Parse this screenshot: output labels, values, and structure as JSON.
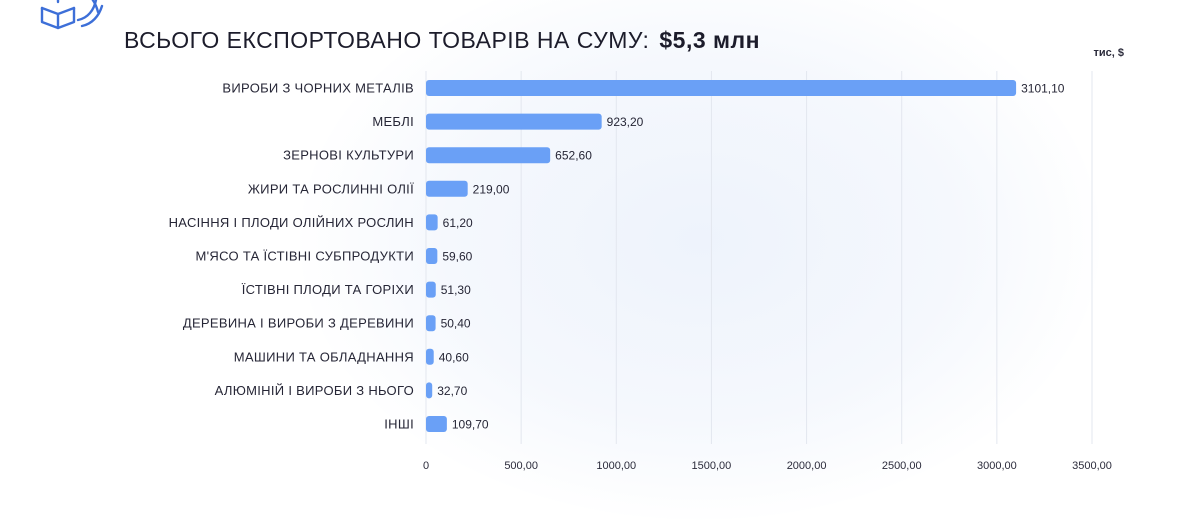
{
  "header": {
    "title": "ВСЬОГО ЕКСПОРТОВАНО ТОВАРІВ НА СУМУ:",
    "total": "$5,3 млн",
    "unit": "тис, $"
  },
  "colors": {
    "bar": "#6aa0f6",
    "grid": "#e3e7ef",
    "logo": "#3d6fd8"
  },
  "icons": [
    "export-box-icon"
  ],
  "chart_data": {
    "type": "bar",
    "orientation": "horizontal",
    "categories": [
      "ВИРОБИ З ЧОРНИХ МЕТАЛІВ",
      "МЕБЛІ",
      "ЗЕРНОВІ КУЛЬТУРИ",
      "ЖИРИ ТА РОСЛИННІ ОЛІЇ",
      "НАСІННЯ І ПЛОДИ ОЛІЙНИХ РОСЛИН",
      "М'ЯСО ТА ЇСТІВНІ СУБПРОДУКТИ",
      "ЇСТІВНІ ПЛОДИ ТА ГОРІХИ",
      "ДЕРЕВИНА І ВИРОБИ З ДЕРЕВИНИ",
      "МАШИНИ ТА ОБЛАДНАННЯ",
      "АЛЮМІНІЙ І ВИРОБИ З НЬОГО",
      "ІНШІ"
    ],
    "values": [
      3101.1,
      923.2,
      652.6,
      219.0,
      61.2,
      59.6,
      51.3,
      50.4,
      40.6,
      32.7,
      109.7
    ],
    "value_labels": [
      "3101,10",
      "923,20",
      "652,60",
      "219,00",
      "61,20",
      "59,60",
      "51,30",
      "50,40",
      "40,60",
      "32,70",
      "109,70"
    ],
    "xlim": [
      0,
      3500
    ],
    "xticks": [
      0,
      500,
      1000,
      1500,
      2000,
      2500,
      3000,
      3500
    ],
    "xtick_labels": [
      "0",
      "500,00",
      "1000,00",
      "1500,00",
      "2000,00",
      "2500,00",
      "3000,00",
      "3500,00"
    ],
    "grid": true
  }
}
